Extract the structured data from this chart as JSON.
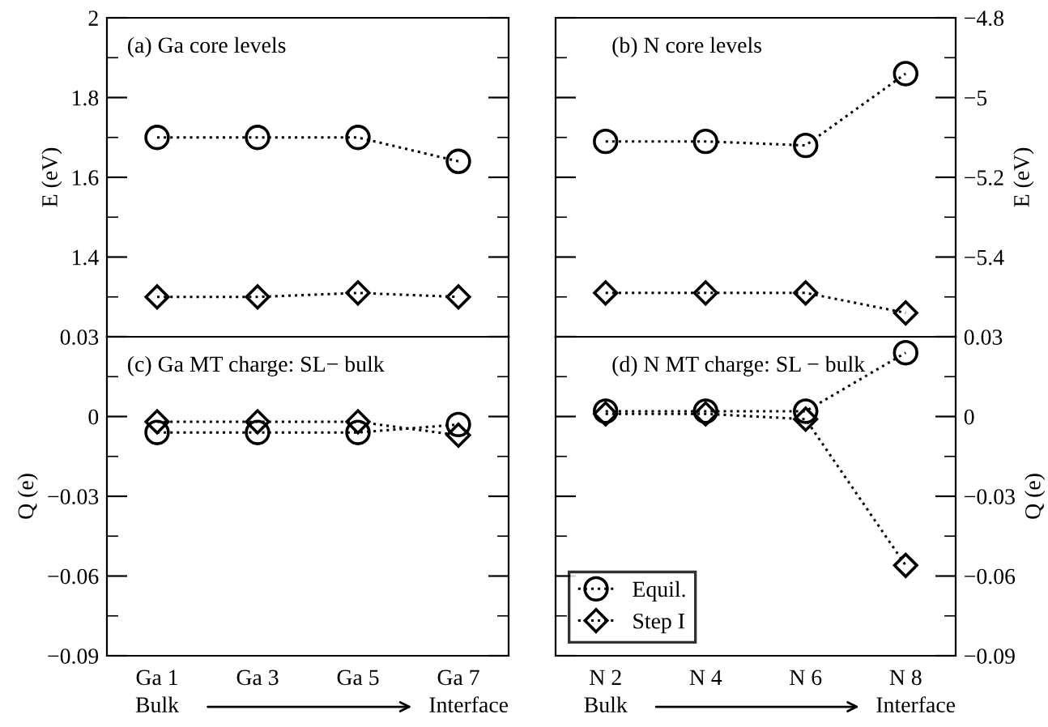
{
  "chart_data": [
    {
      "type": "line",
      "title": "(a) Ga core levels",
      "ylabel": "E (eV)",
      "categories": [
        null,
        null,
        null,
        null
      ],
      "tick_labels": "y",
      "ylim": [
        1.2,
        2
      ],
      "yticks": [
        {
          "value": 1.2,
          "label": null
        },
        1.4,
        1.6,
        1.8,
        2
      ],
      "line_style": "dotted",
      "grid": false,
      "legend": false,
      "series": [
        {
          "marker": "circle",
          "color": "#000000",
          "values": [
            1.7,
            1.7,
            1.7,
            1.64
          ]
        },
        {
          "marker": "diamond",
          "color": "#000000",
          "values": [
            1.3,
            1.3,
            1.31,
            1.3
          ]
        }
      ]
    },
    {
      "type": "line",
      "title": "(b) N core levels",
      "ylabel": "E (eV)",
      "categories": [
        null,
        null,
        null,
        null
      ],
      "tick_labels": "y",
      "ylim": [
        -5.6,
        -4.8
      ],
      "yticks": [
        {
          "value": -5.6,
          "label": null
        },
        {
          "value": -5.4,
          "label": "−5.4"
        },
        {
          "value": -5.2,
          "label": "−5.2"
        },
        {
          "value": -5,
          "label": "−5"
        },
        {
          "value": -4.8,
          "label": "−4.8"
        }
      ],
      "line_style": "dotted",
      "grid": false,
      "legend": false,
      "series": [
        {
          "marker": "circle",
          "color": "#000000",
          "values": [
            -5.11,
            -5.11,
            -5.12,
            -4.94
          ]
        },
        {
          "marker": "diamond",
          "color": "#000000",
          "values": [
            -5.49,
            -5.49,
            -5.49,
            -5.54
          ]
        }
      ]
    },
    {
      "type": "line",
      "title": "(c) Ga MT charge: SL− bulk",
      "ylabel": "Q (e)",
      "categories": [
        "Ga 1",
        "Ga 3",
        "Ga 5",
        "Ga 7"
      ],
      "ylim": [
        -0.09,
        0.03
      ],
      "yticks": [
        {
          "value": -0.09,
          "label": "−0.09"
        },
        {
          "value": -0.06,
          "label": "−0.06"
        },
        {
          "value": -0.03,
          "label": "−0.03"
        },
        0,
        0.03
      ],
      "line_style": "dotted",
      "grid": false,
      "legend": false,
      "annotations": [
        "Bulk",
        "Interface"
      ],
      "series": [
        {
          "marker": "circle",
          "color": "#000000",
          "values": [
            -0.006,
            -0.006,
            -0.006,
            -0.003
          ]
        },
        {
          "marker": "diamond",
          "color": "#000000",
          "values": [
            -0.002,
            -0.002,
            -0.002,
            -0.007
          ]
        }
      ]
    },
    {
      "type": "line",
      "title": "(d) N MT charge: SL − bulk",
      "ylabel": "Q (e)",
      "categories": [
        "N 2",
        "N 4",
        "N 6",
        "N 8"
      ],
      "ylim": [
        -0.09,
        0.03
      ],
      "yticks": [
        {
          "value": -0.09,
          "label": "−0.09"
        },
        {
          "value": -0.06,
          "label": "−0.06"
        },
        {
          "value": -0.03,
          "label": "−0.03"
        },
        0,
        0.03
      ],
      "line_style": "dotted",
      "grid": false,
      "legend": "bottom left",
      "annotations": [
        "Bulk",
        "Interface"
      ],
      "series": [
        {
          "name": "Equil.",
          "marker": "circle",
          "color": "#000000",
          "values": [
            0.002,
            0.002,
            0.002,
            0.024
          ]
        },
        {
          "name": "Step I",
          "marker": "diamond",
          "color": "#000000",
          "values": [
            0.001,
            0.001,
            -0.001,
            -0.056
          ]
        }
      ]
    }
  ]
}
